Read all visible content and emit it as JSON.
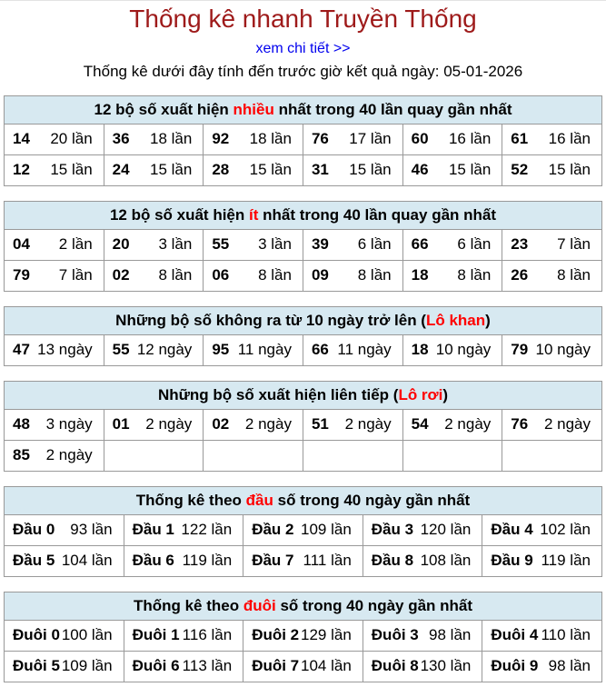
{
  "page": {
    "title": "Thống kê nhanh Truyền Thống",
    "detail_link": "xem chi tiết >>",
    "subtitle": "Thống kê dưới đây tính đến trước giờ kết quả ngày: 05-01-2026"
  },
  "colors": {
    "title": "#9e1a1a",
    "link": "#0000ee",
    "accent_red": "#ff0000",
    "header_bg": "#d7e9f1",
    "border": "#999999"
  },
  "tables": [
    {
      "name": "most-frequent",
      "columns": 6,
      "header": {
        "pre": "12 bộ số xuất hiện ",
        "red": "nhiều",
        "post": " nhất trong 40 lần quay gần nhất"
      },
      "rows": [
        [
          {
            "num": "14",
            "count": "20 lần"
          },
          {
            "num": "36",
            "count": "18 lần"
          },
          {
            "num": "92",
            "count": "18 lần"
          },
          {
            "num": "76",
            "count": "17 lần"
          },
          {
            "num": "60",
            "count": "16 lần"
          },
          {
            "num": "61",
            "count": "16 lần"
          }
        ],
        [
          {
            "num": "12",
            "count": "15 lần"
          },
          {
            "num": "24",
            "count": "15 lần"
          },
          {
            "num": "28",
            "count": "15 lần"
          },
          {
            "num": "31",
            "count": "15 lần"
          },
          {
            "num": "46",
            "count": "15 lần"
          },
          {
            "num": "52",
            "count": "15 lần"
          }
        ]
      ]
    },
    {
      "name": "least-frequent",
      "columns": 6,
      "header": {
        "pre": "12 bộ số xuất hiện ",
        "red": "ít",
        "post": " nhất trong 40 lần quay gần nhất"
      },
      "rows": [
        [
          {
            "num": "04",
            "count": "2 lần"
          },
          {
            "num": "20",
            "count": "3 lần"
          },
          {
            "num": "55",
            "count": "3 lần"
          },
          {
            "num": "39",
            "count": "6 lần"
          },
          {
            "num": "66",
            "count": "6 lần"
          },
          {
            "num": "23",
            "count": "7 lần"
          }
        ],
        [
          {
            "num": "79",
            "count": "7 lần"
          },
          {
            "num": "02",
            "count": "8 lần"
          },
          {
            "num": "06",
            "count": "8 lần"
          },
          {
            "num": "09",
            "count": "8 lần"
          },
          {
            "num": "18",
            "count": "8 lần"
          },
          {
            "num": "26",
            "count": "8 lần"
          }
        ]
      ]
    },
    {
      "name": "lo-khan",
      "columns": 6,
      "header": {
        "pre": "Những bộ số không ra từ 10 ngày trở lên (",
        "red": "Lô khan",
        "post": ")"
      },
      "rows": [
        [
          {
            "num": "47",
            "count": "13 ngày"
          },
          {
            "num": "55",
            "count": "12 ngày"
          },
          {
            "num": "95",
            "count": "11 ngày"
          },
          {
            "num": "66",
            "count": "11 ngày"
          },
          {
            "num": "18",
            "count": "10 ngày"
          },
          {
            "num": "79",
            "count": "10 ngày"
          }
        ]
      ]
    },
    {
      "name": "lo-roi",
      "columns": 6,
      "header": {
        "pre": "Những bộ số xuất hiện liên tiếp (",
        "red": "Lô rơi",
        "post": ")"
      },
      "rows": [
        [
          {
            "num": "48",
            "count": "3 ngày"
          },
          {
            "num": "01",
            "count": "2 ngày"
          },
          {
            "num": "02",
            "count": "2 ngày"
          },
          {
            "num": "51",
            "count": "2 ngày"
          },
          {
            "num": "54",
            "count": "2 ngày"
          },
          {
            "num": "76",
            "count": "2 ngày"
          }
        ],
        [
          {
            "num": "85",
            "count": "2 ngày"
          },
          {
            "num": "",
            "count": ""
          },
          {
            "num": "",
            "count": ""
          },
          {
            "num": "",
            "count": ""
          },
          {
            "num": "",
            "count": ""
          },
          {
            "num": "",
            "count": ""
          }
        ]
      ]
    },
    {
      "name": "dau-stats",
      "columns": 5,
      "header": {
        "pre": "Thống kê theo ",
        "red": "đầu",
        "post": " số trong 40 ngày gần nhất"
      },
      "rows": [
        [
          {
            "num": "Đầu 0",
            "count": "93 lần"
          },
          {
            "num": "Đầu 1",
            "count": "122 lần"
          },
          {
            "num": "Đầu 2",
            "count": "109 lần"
          },
          {
            "num": "Đầu 3",
            "count": "120 lần"
          },
          {
            "num": "Đầu 4",
            "count": "102 lần"
          }
        ],
        [
          {
            "num": "Đầu 5",
            "count": "104 lần"
          },
          {
            "num": "Đầu 6",
            "count": "119 lần"
          },
          {
            "num": "Đầu 7",
            "count": "111 lần"
          },
          {
            "num": "Đầu 8",
            "count": "108 lần"
          },
          {
            "num": "Đầu 9",
            "count": "119 lần"
          }
        ]
      ]
    },
    {
      "name": "duoi-stats",
      "columns": 5,
      "header": {
        "pre": "Thống kê theo ",
        "red": "đuôi",
        "post": " số trong 40 ngày gần nhất"
      },
      "rows": [
        [
          {
            "num": "Đuôi 0",
            "count": "100 lần"
          },
          {
            "num": "Đuôi 1",
            "count": "116 lần"
          },
          {
            "num": "Đuôi 2",
            "count": "129 lần"
          },
          {
            "num": "Đuôi 3",
            "count": "98 lần"
          },
          {
            "num": "Đuôi 4",
            "count": "110 lần"
          }
        ],
        [
          {
            "num": "Đuôi 5",
            "count": "109 lần"
          },
          {
            "num": "Đuôi 6",
            "count": "113 lần"
          },
          {
            "num": "Đuôi 7",
            "count": "104 lần"
          },
          {
            "num": "Đuôi 8",
            "count": "130 lần"
          },
          {
            "num": "Đuôi 9",
            "count": "98 lần"
          }
        ]
      ]
    }
  ]
}
